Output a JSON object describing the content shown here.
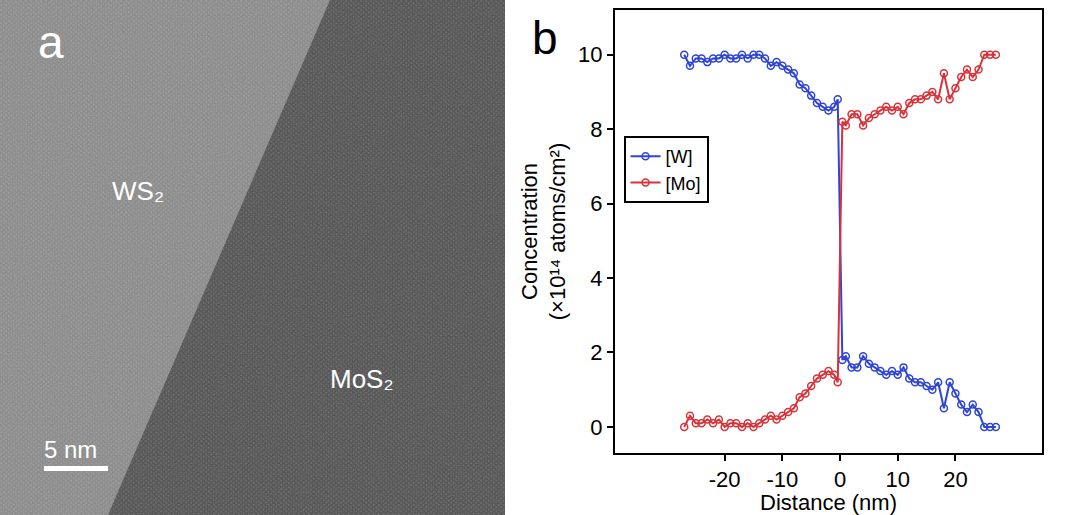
{
  "image": {
    "panel_label": "a",
    "labels": [
      "WS₂",
      "MoS₂"
    ],
    "scale_bar": "5 nm"
  },
  "chart_data": {
    "panel_label": "b",
    "type": "line",
    "x_label": "Distance (nm)",
    "y_label": "Concentration (×10¹⁴ atoms/cm²)",
    "x": [
      -27,
      -26,
      -25,
      -24,
      -23,
      -22,
      -21,
      -20,
      -19,
      -18,
      -17,
      -16,
      -15,
      -14,
      -13,
      -12,
      -11,
      -10,
      -9,
      -8,
      -7,
      -6,
      -5,
      -4,
      -3,
      -2,
      -1,
      -0.4,
      0.4,
      1,
      2,
      3,
      4,
      5,
      6,
      7,
      8,
      9,
      10,
      11,
      12,
      13,
      14,
      15,
      16,
      17,
      18,
      19,
      20,
      21,
      22,
      23,
      24,
      25,
      26,
      27
    ],
    "series": [
      {
        "name": "[W]",
        "color": "#2f45d6",
        "marker": "open circle",
        "line_style": "solid",
        "values": [
          10.0,
          9.7,
          9.9,
          9.9,
          9.8,
          9.9,
          9.9,
          10.0,
          9.9,
          9.9,
          10.0,
          9.9,
          10.0,
          10.0,
          9.9,
          9.7,
          9.8,
          9.7,
          9.6,
          9.5,
          9.2,
          9.1,
          8.9,
          8.7,
          8.6,
          8.5,
          8.6,
          8.8,
          1.8,
          1.9,
          1.6,
          1.6,
          1.9,
          1.7,
          1.6,
          1.5,
          1.4,
          1.5,
          1.4,
          1.6,
          1.3,
          1.2,
          1.2,
          1.1,
          1.0,
          1.2,
          0.5,
          1.2,
          0.9,
          0.6,
          0.4,
          0.6,
          0.4,
          0.0,
          0.0,
          0.0
        ]
      },
      {
        "name": "[Mo]",
        "color": "#d8333a",
        "marker": "open circle",
        "line_style": "solid",
        "values": [
          0.0,
          0.3,
          0.1,
          0.1,
          0.2,
          0.1,
          0.2,
          0.0,
          0.1,
          0.1,
          0.0,
          0.1,
          0.0,
          0.1,
          0.2,
          0.3,
          0.2,
          0.3,
          0.4,
          0.5,
          0.8,
          0.9,
          1.1,
          1.3,
          1.4,
          1.5,
          1.4,
          1.2,
          8.2,
          8.1,
          8.4,
          8.4,
          8.1,
          8.3,
          8.4,
          8.5,
          8.6,
          8.5,
          8.6,
          8.4,
          8.7,
          8.8,
          8.8,
          8.9,
          9.0,
          8.8,
          9.5,
          8.8,
          9.1,
          9.4,
          9.6,
          9.4,
          9.6,
          10.0,
          10.0,
          10.0
        ]
      }
    ],
    "xlim": [
      -39,
      35
    ],
    "xticks": [
      -20,
      -10,
      0,
      10,
      20
    ],
    "ylim": [
      -0.7,
      11.2
    ],
    "yticks": [
      0,
      2,
      4,
      6,
      8,
      10
    ],
    "legend": "left",
    "grid": false
  }
}
